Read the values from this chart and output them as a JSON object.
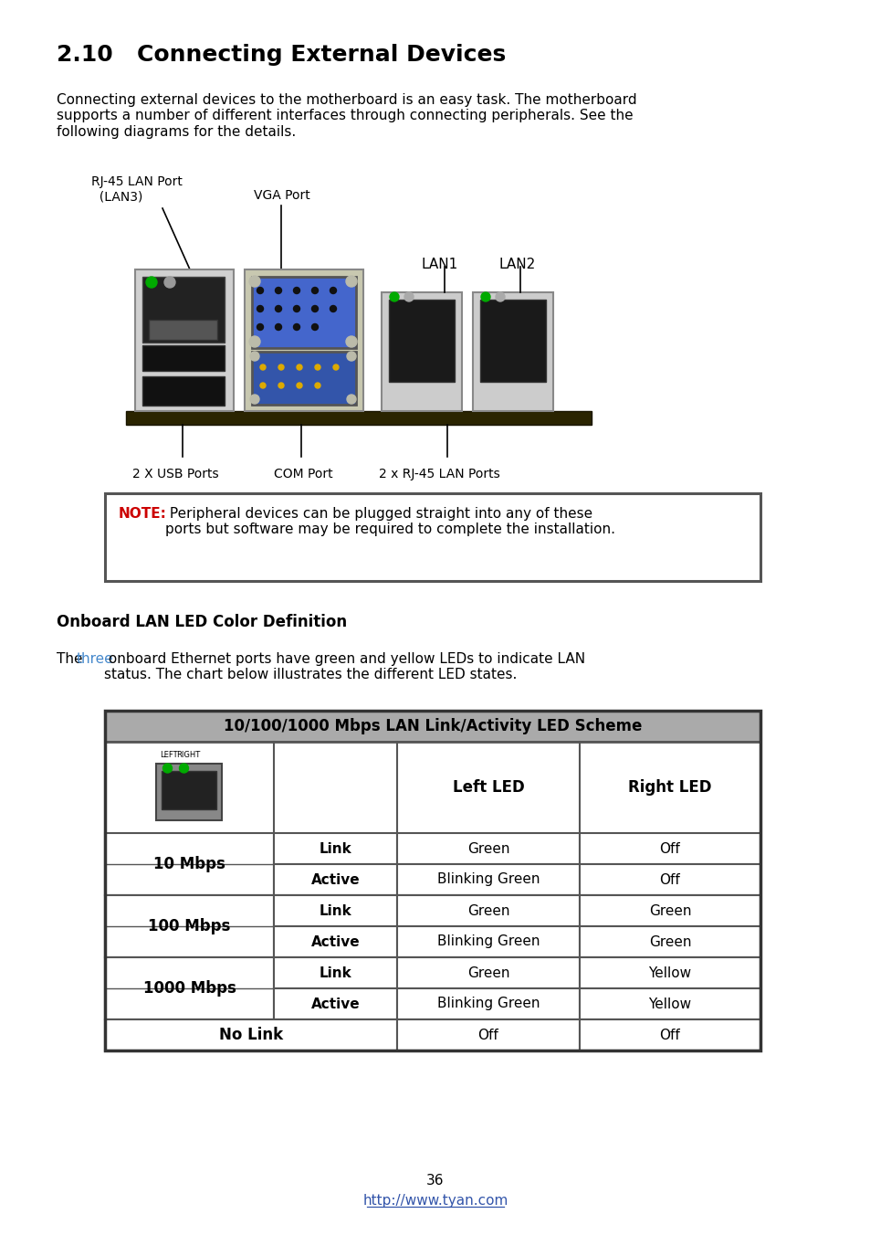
{
  "title": "2.10   Connecting External Devices",
  "intro_text": "Connecting external devices to the motherboard is an easy task. The motherboard\nsupports a number of different interfaces through connecting peripherals. See the\nfollowing diagrams for the details.",
  "label_rj45": "RJ-45 LAN Port\n  (LAN3)",
  "label_vga": "VGA Port",
  "label_lan1": "LAN1",
  "label_lan2": "LAN2",
  "label_usb": "2 X USB Ports",
  "label_com": "COM Port",
  "label_rj45_lan": "2 x RJ-45 LAN Ports",
  "note_label": "NOTE:",
  "note_body": " Peripheral devices can be plugged straight into any of these\nports but software may be required to complete the installation.",
  "section_title": "Onboard LAN LED Color Definition",
  "led_pre": "The ",
  "led_colored": "three",
  "led_post": " onboard Ethernet ports have green and yellow LEDs to indicate LAN\nstatus. The chart below illustrates the different LED states.",
  "table_title": "10/100/1000 Mbps LAN Link/Activity LED Scheme",
  "col2_hdr": "Left LED",
  "col3_hdr": "Right LED",
  "table_rows": [
    [
      "10 Mbps",
      "Link",
      "Green",
      "Off"
    ],
    [
      "10 Mbps",
      "Active",
      "Blinking Green",
      "Off"
    ],
    [
      "100 Mbps",
      "Link",
      "Green",
      "Green"
    ],
    [
      "100 Mbps",
      "Active",
      "Blinking Green",
      "Green"
    ],
    [
      "1000 Mbps",
      "Link",
      "Green",
      "Yellow"
    ],
    [
      "1000 Mbps",
      "Active",
      "Blinking Green",
      "Yellow"
    ],
    [
      "No Link",
      "",
      "Off",
      "Off"
    ]
  ],
  "page_num": "36",
  "page_url": "http://www.tyan.com",
  "bg": "#ffffff",
  "black": "#000000",
  "red": "#cc0000",
  "blue_link": "#3355aa",
  "three_color": "#4488cc",
  "hdr_bg": "#aaaaaa",
  "border": "#555555"
}
